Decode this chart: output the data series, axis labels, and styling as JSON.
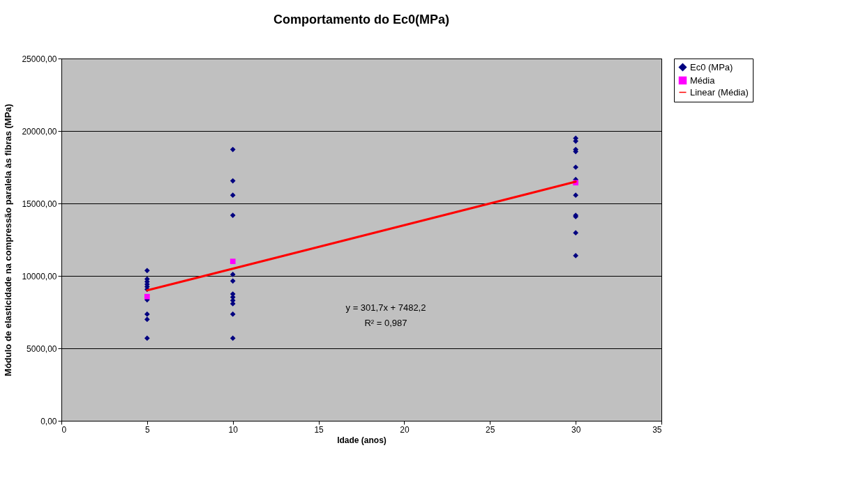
{
  "chart_data": {
    "type": "scatter",
    "title": "Comportamento do Ec0(MPa)",
    "xlabel": "Idade (anos)",
    "ylabel": "Módulo de elasticidade na compressão paralela às fibras (MPa)",
    "series": [
      {
        "name": "Ec0 (MPa)",
        "color": "#000080",
        "marker": "diamond",
        "x": [
          5,
          5,
          5,
          5,
          5,
          5,
          5,
          5,
          5,
          5,
          10,
          10,
          10,
          10,
          10,
          10,
          10,
          10,
          10,
          10,
          10,
          10,
          30,
          30,
          30,
          30,
          30,
          30,
          30,
          30,
          30,
          30,
          30
        ],
        "values": [
          10370,
          9780,
          9600,
          9420,
          9250,
          9070,
          8350,
          7360,
          7000,
          5700,
          18720,
          16560,
          15570,
          14180,
          10100,
          9650,
          8750,
          8530,
          8300,
          8080,
          7360,
          5700,
          19500,
          19300,
          18720,
          18580,
          17500,
          16650,
          15570,
          14180,
          14090,
          12970,
          11400
        ]
      },
      {
        "name": "Média",
        "color": "#ff00ff",
        "marker": "square",
        "x": [
          5,
          10,
          30
        ],
        "values": [
          8570,
          11000,
          16430
        ]
      },
      {
        "name": "Linear (Média)",
        "type": "line",
        "color": "#ff0000",
        "marker": "none",
        "x": [
          5,
          30
        ],
        "values": [
          9000,
          16500
        ]
      }
    ],
    "annotations": [
      "y = 301,7x + 7482,2",
      "R² = 0,987"
    ],
    "xlim": [
      0,
      35
    ],
    "xticks": [
      0,
      5,
      10,
      15,
      20,
      25,
      30,
      35
    ],
    "ylim": [
      0,
      25000
    ],
    "yticks": [
      {
        "value": 0,
        "label": "0,00"
      },
      {
        "value": 5000,
        "label": "5000,00"
      },
      {
        "value": 10000,
        "label": "10000,00"
      },
      {
        "value": 15000,
        "label": "15000,00"
      },
      {
        "value": 20000,
        "label": "20000,00"
      },
      {
        "value": 25000,
        "label": "25000,00"
      }
    ],
    "grid": "y",
    "legend": "right"
  }
}
